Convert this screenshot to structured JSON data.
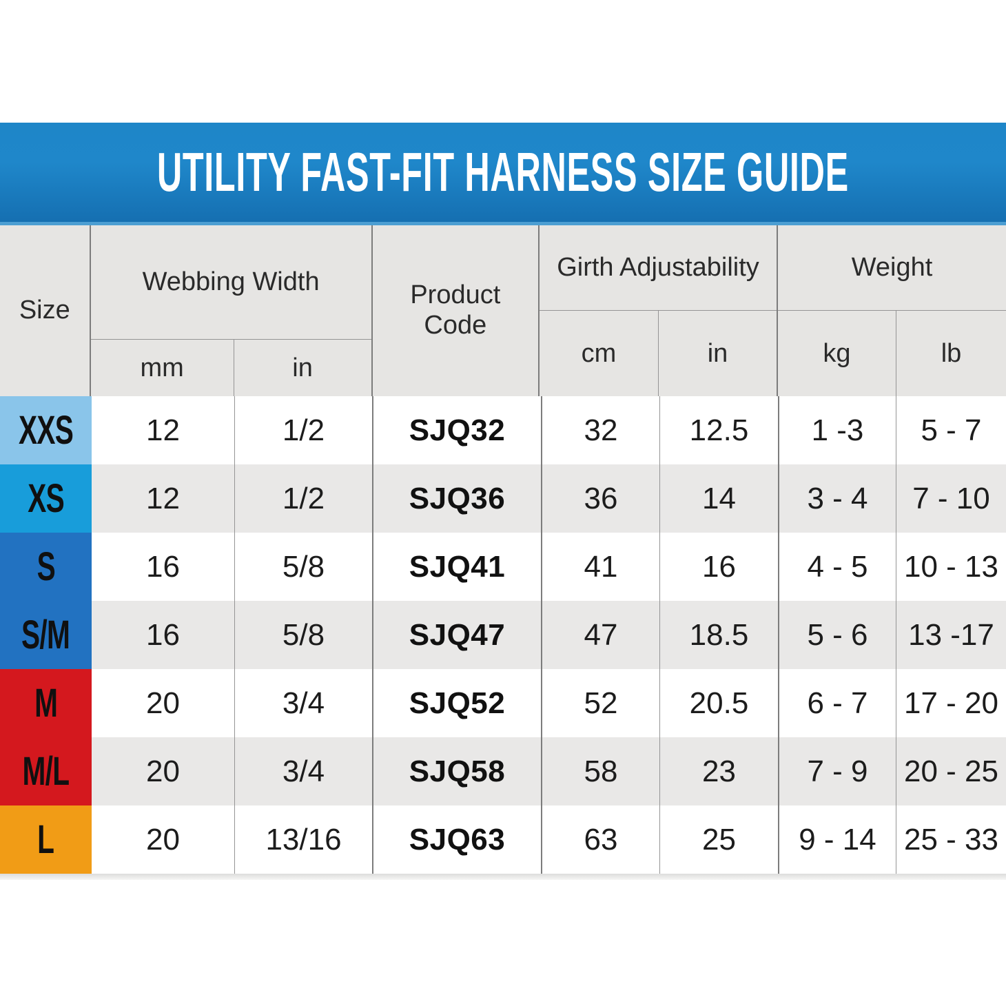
{
  "title": "UTILITY FAST-FIT HARNESS SIZE GUIDE",
  "colors": {
    "banner_top": "#1e86c8",
    "banner_mid": "#1f87ca",
    "banner_bottom": "#156fb1",
    "banner_edge": "#4c9ed2",
    "size_xxs": "#8ac5ea",
    "size_xs": "#189dda",
    "size_s": "#2272c1",
    "size_m": "#d4181e",
    "size_l": "#f19c16"
  },
  "table": {
    "headers": {
      "size": "Size",
      "webbing_width": "Webbing Width",
      "product_code": "Product Code",
      "girth": "Girth Adjustability",
      "weight": "Weight",
      "units": {
        "mm": "mm",
        "webbing_in": "in",
        "cm": "cm",
        "girth_in": "in",
        "kg": "kg",
        "lb": "lb"
      }
    }
  },
  "chart_data": {
    "type": "table",
    "title": "UTILITY FAST-FIT HARNESS SIZE GUIDE",
    "column_groups": [
      "Size",
      "Webbing Width",
      "Product Code",
      "Girth Adjustability",
      "Weight"
    ],
    "columns": [
      "Size",
      "Webbing Width mm",
      "Webbing Width in",
      "Product Code",
      "Girth Adjustability cm",
      "Girth Adjustability in",
      "Weight kg",
      "Weight lb"
    ],
    "rows": [
      {
        "size": "XXS",
        "color": "#8ac5ea",
        "mm": "12",
        "in": "1/2",
        "code": "SJQ32",
        "cm": "32",
        "girth_in": "12.5",
        "kg": "1 -3",
        "lb": "5 - 7"
      },
      {
        "size": "XS",
        "color": "#189dda",
        "mm": "12",
        "in": "1/2",
        "code": "SJQ36",
        "cm": "36",
        "girth_in": "14",
        "kg": "3 - 4",
        "lb": "7 - 10"
      },
      {
        "size": "S",
        "color": "#2272c1",
        "mm": "16",
        "in": "5/8",
        "code": "SJQ41",
        "cm": "41",
        "girth_in": "16",
        "kg": "4 - 5",
        "lb": "10 - 13"
      },
      {
        "size": "S/M",
        "color": "#2272c1",
        "mm": "16",
        "in": "5/8",
        "code": "SJQ47",
        "cm": "47",
        "girth_in": "18.5",
        "kg": "5 - 6",
        "lb": "13 -17"
      },
      {
        "size": "M",
        "color": "#d4181e",
        "mm": "20",
        "in": "3/4",
        "code": "SJQ52",
        "cm": "52",
        "girth_in": "20.5",
        "kg": "6 - 7",
        "lb": "17 - 20"
      },
      {
        "size": "M/L",
        "color": "#d4181e",
        "mm": "20",
        "in": "3/4",
        "code": "SJQ58",
        "cm": "58",
        "girth_in": "23",
        "kg": "7 - 9",
        "lb": "20 - 25"
      },
      {
        "size": "L",
        "color": "#f19c16",
        "mm": "20",
        "in": "13/16",
        "code": "SJQ63",
        "cm": "63",
        "girth_in": "25",
        "kg": "9 - 14",
        "lb": "25 - 33"
      }
    ]
  }
}
